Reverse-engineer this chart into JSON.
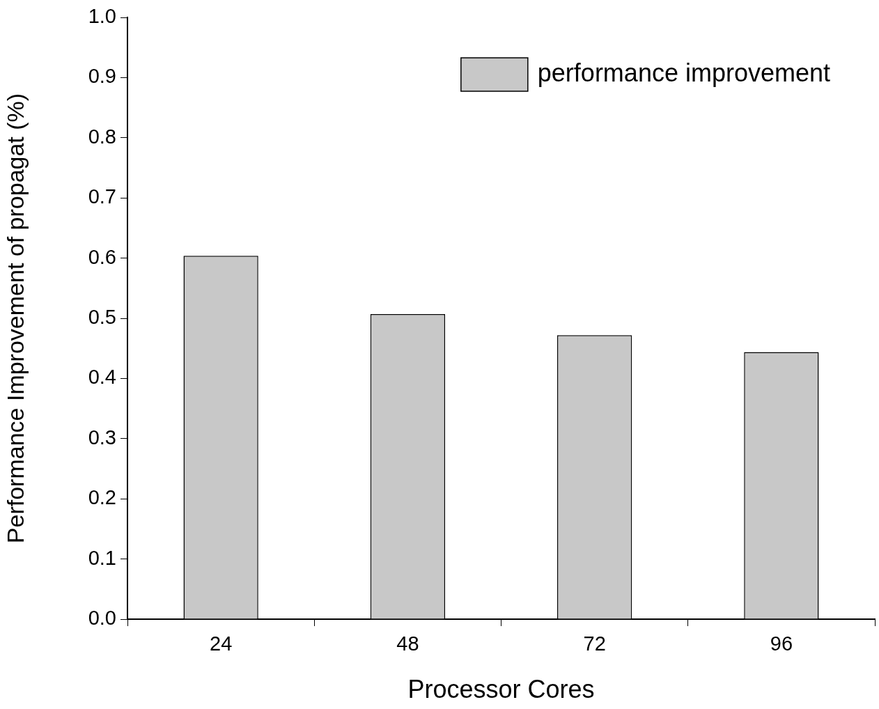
{
  "chart_data": {
    "type": "bar",
    "xlabel": "Processor Cores",
    "ylabel": "Performance Improvement of propagat (%)",
    "categories": [
      "24",
      "48",
      "72",
      "96"
    ],
    "series": [
      {
        "name": "performance improvement",
        "color": "#c8c8c8",
        "values": [
          0.604,
          0.507,
          0.472,
          0.444
        ]
      }
    ],
    "ylim": [
      0,
      1
    ],
    "yticks": [
      {
        "value": 0,
        "label": "0.0"
      },
      {
        "value": 0.1,
        "label": "0.1"
      },
      {
        "value": 0.2,
        "label": "0.2"
      },
      {
        "value": 0.3,
        "label": "0.3"
      },
      {
        "value": 0.4,
        "label": "0.4"
      },
      {
        "value": 0.5,
        "label": "0.5"
      },
      {
        "value": 0.6,
        "label": "0.6"
      },
      {
        "value": 0.7,
        "label": "0.7"
      },
      {
        "value": 0.8,
        "label": "0.8"
      },
      {
        "value": 0.9,
        "label": "0.9"
      },
      {
        "value": 1,
        "label": "1.0"
      }
    ],
    "grid": false,
    "legend": "top right"
  }
}
